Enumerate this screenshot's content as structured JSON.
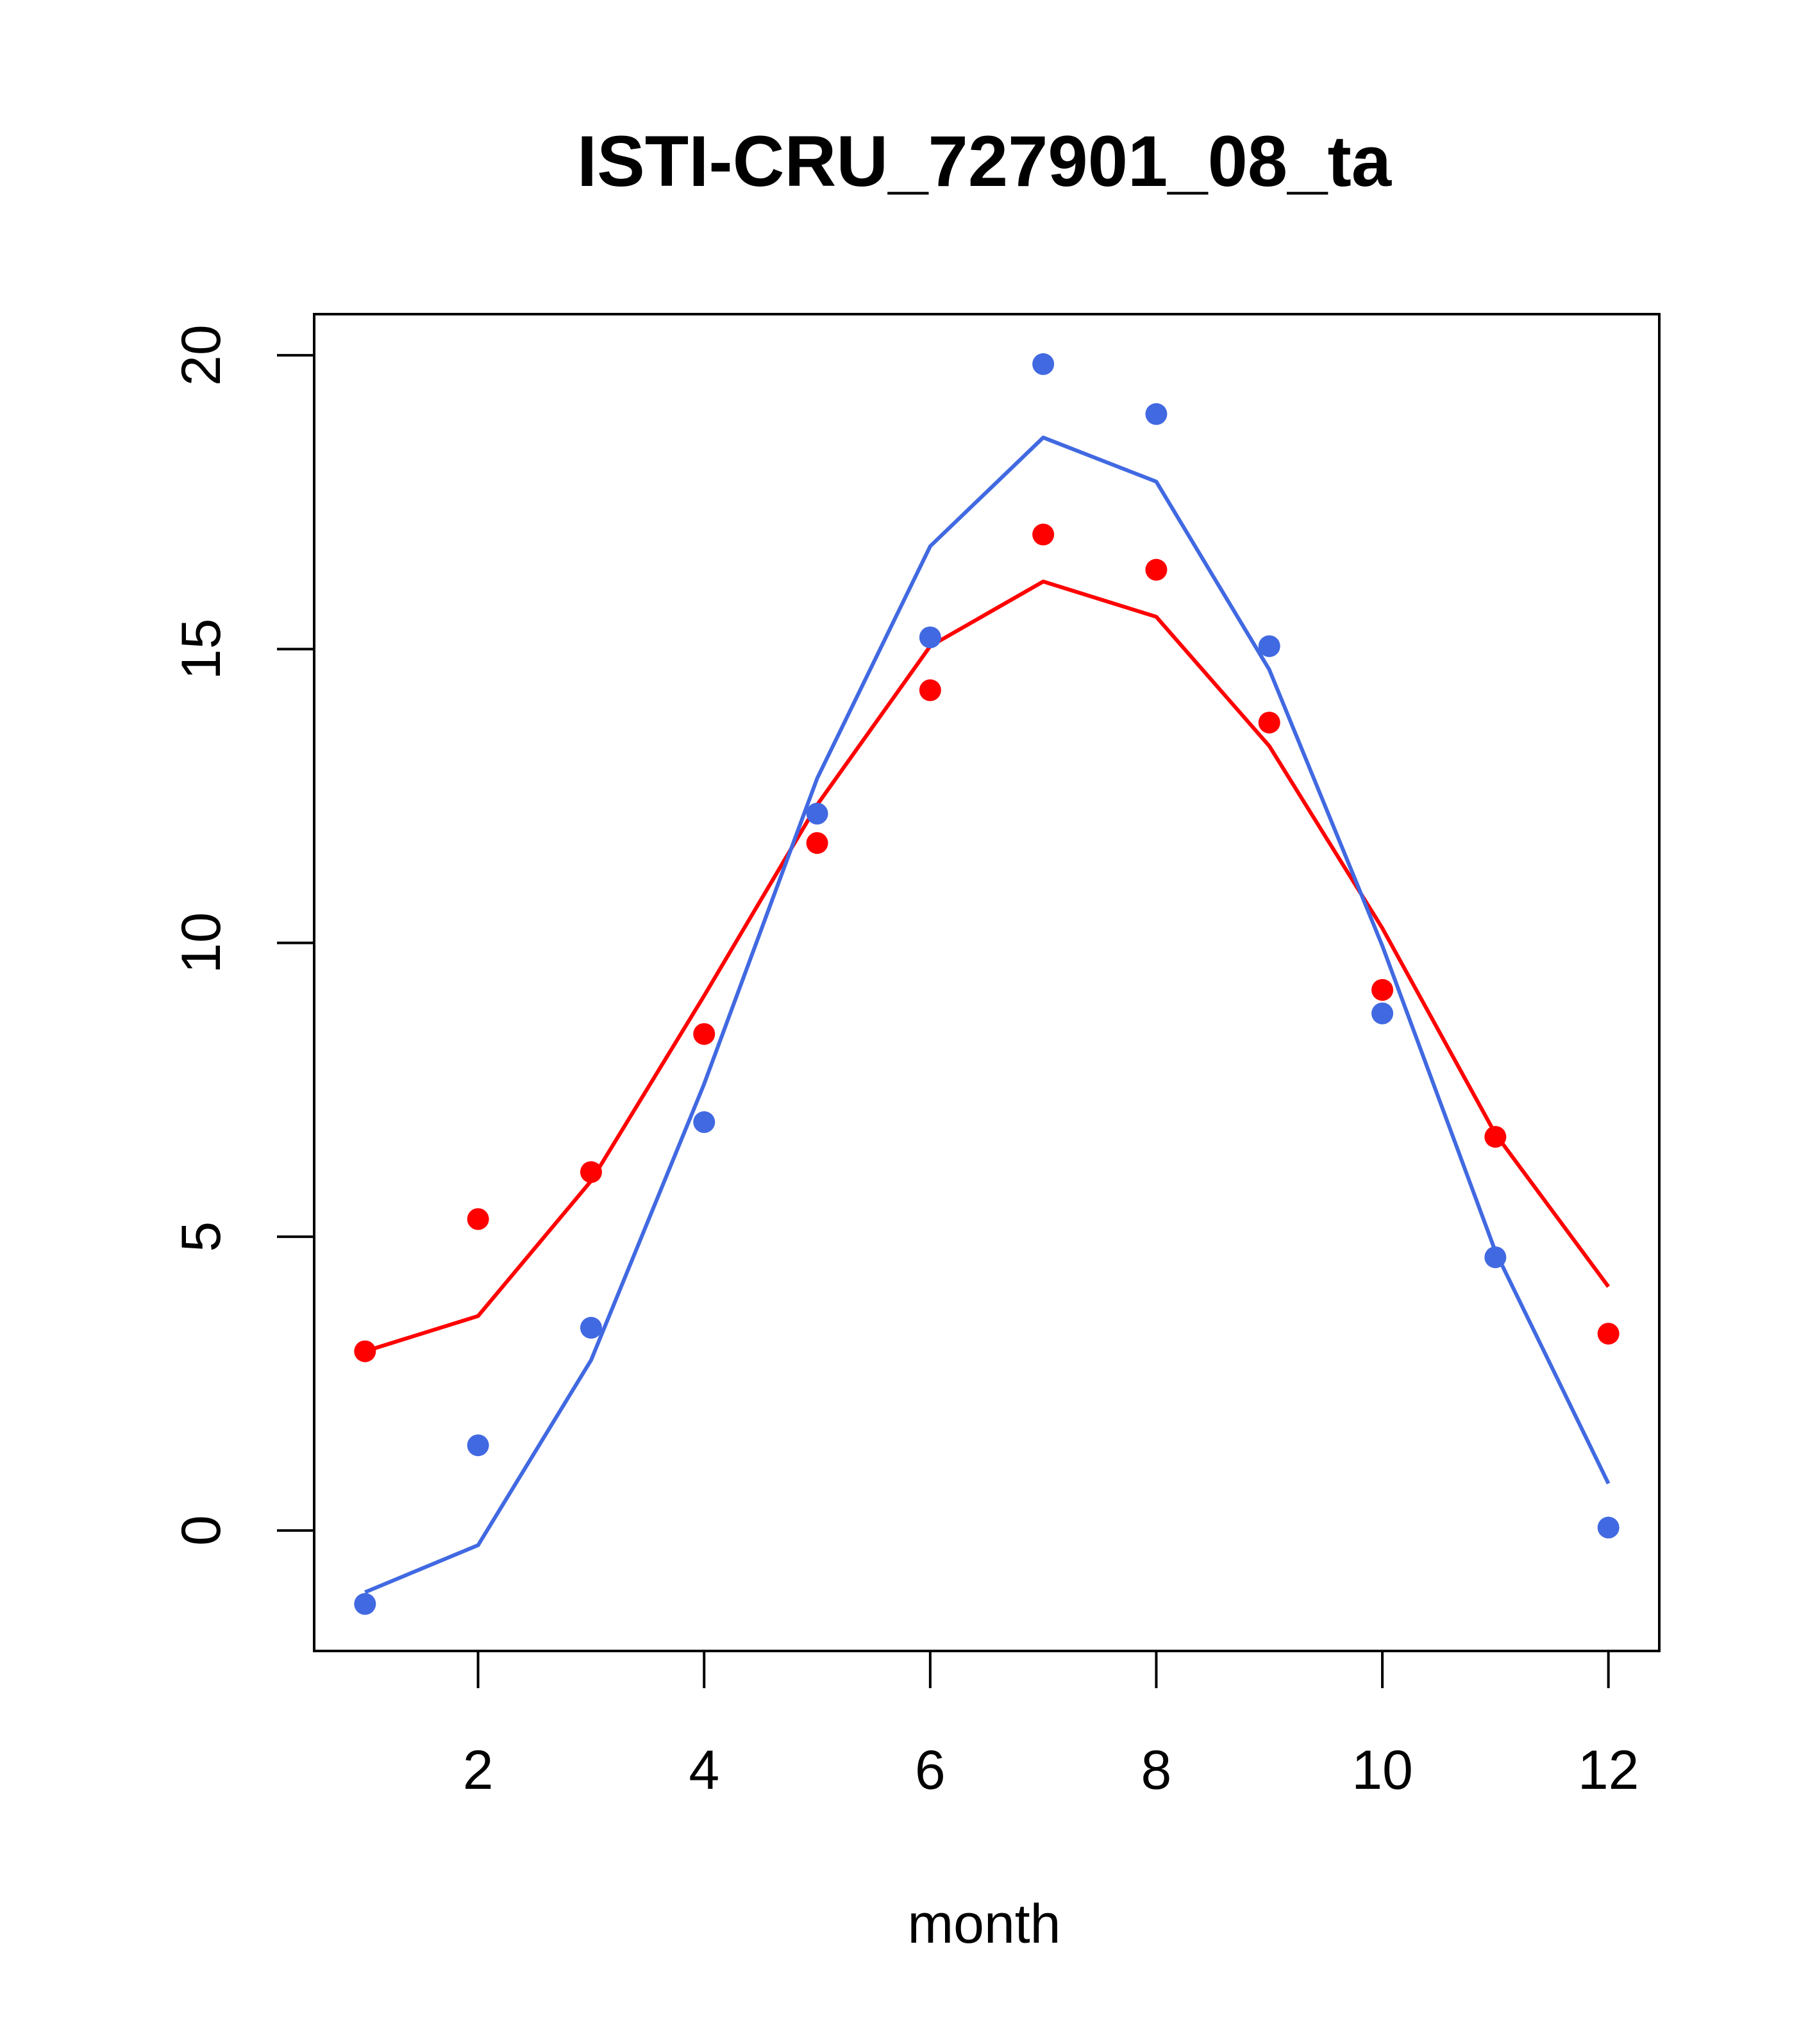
{
  "chart_data": {
    "type": "line",
    "title": "ISTI-CRU_727901_08_ta",
    "xlabel": "month",
    "ylabel": "",
    "xlim": [
      0.55,
      12.45
    ],
    "ylim": [
      -2.05,
      20.7
    ],
    "x_ticks": [
      2,
      4,
      6,
      8,
      10,
      12
    ],
    "y_ticks": [
      0,
      5,
      10,
      15,
      20
    ],
    "grid": false,
    "legend": "none",
    "series": [
      {
        "color": "#ff0000",
        "x": [
          1,
          2,
          3,
          4,
          5,
          6,
          7,
          8,
          9,
          10,
          11,
          12
        ],
        "points": [
          3.05,
          5.3,
          6.1,
          8.45,
          11.7,
          14.3,
          16.95,
          16.35,
          13.75,
          9.2,
          6.7,
          3.35
        ],
        "line": [
          3.05,
          3.65,
          5.95,
          9.1,
          12.35,
          15.05,
          16.15,
          15.55,
          13.35,
          10.25,
          6.75,
          4.15
        ]
      },
      {
        "color": "#4169e1",
        "x": [
          1,
          2,
          3,
          4,
          5,
          6,
          7,
          8,
          9,
          10,
          11,
          12
        ],
        "points": [
          -1.25,
          1.45,
          3.45,
          6.95,
          12.2,
          15.2,
          19.85,
          19.0,
          15.05,
          8.8,
          4.65,
          0.05
        ],
        "line": [
          -1.05,
          -0.25,
          2.9,
          7.6,
          12.8,
          16.75,
          18.6,
          17.85,
          14.65,
          9.95,
          4.75,
          0.8
        ]
      }
    ]
  }
}
